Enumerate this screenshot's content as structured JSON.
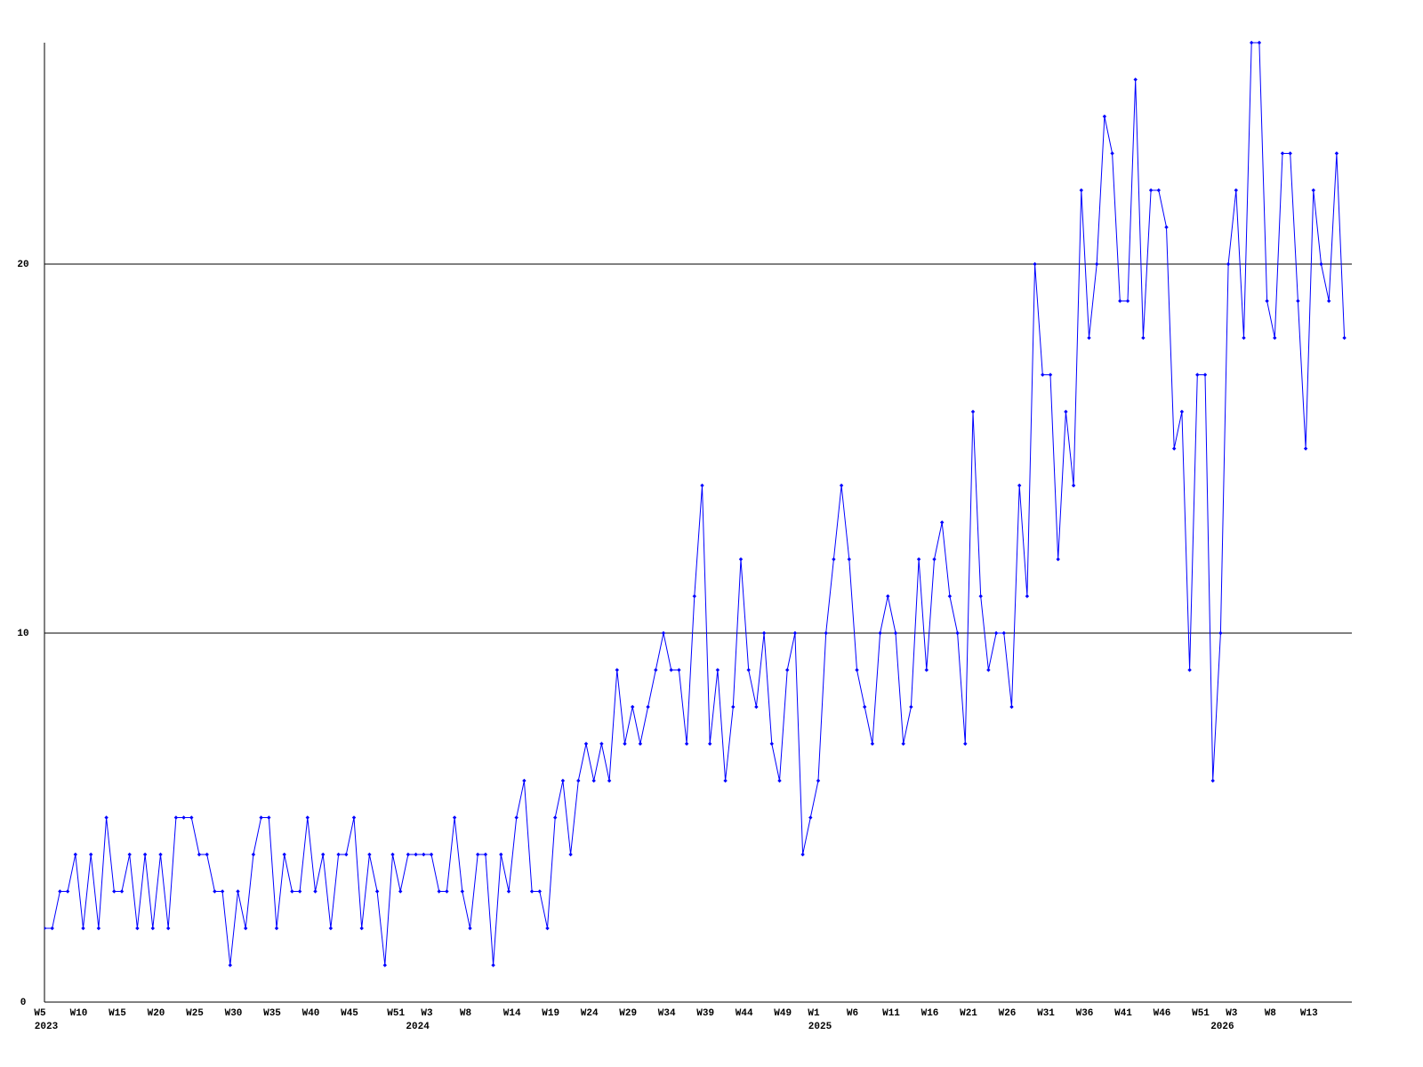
{
  "chart_data": {
    "type": "line",
    "categories": [
      "W5",
      null,
      null,
      null,
      null,
      "W10",
      null,
      null,
      null,
      null,
      "W15",
      null,
      null,
      null,
      null,
      "W20",
      null,
      null,
      null,
      null,
      "W25",
      null,
      null,
      null,
      null,
      "W30",
      null,
      null,
      null,
      null,
      "W35",
      null,
      null,
      null,
      null,
      "W40",
      null,
      null,
      null,
      null,
      "W45",
      null,
      null,
      null,
      null,
      null,
      "W51",
      null,
      null,
      null,
      "W3",
      null,
      null,
      null,
      null,
      "W8",
      null,
      null,
      null,
      null,
      null,
      "W14",
      null,
      null,
      null,
      null,
      "W19",
      null,
      null,
      null,
      null,
      "W24",
      null,
      null,
      null,
      null,
      "W29",
      null,
      null,
      null,
      null,
      "W34",
      null,
      null,
      null,
      null,
      "W39",
      null,
      null,
      null,
      null,
      "W44",
      null,
      null,
      null,
      null,
      "W49",
      null,
      null,
      null,
      "W1",
      null,
      null,
      null,
      null,
      "W6",
      null,
      null,
      null,
      null,
      "W11",
      null,
      null,
      null,
      null,
      "W16",
      null,
      null,
      null,
      null,
      "W21",
      null,
      null,
      null,
      null,
      "W26",
      null,
      null,
      null,
      null,
      "W31",
      null,
      null,
      null,
      null,
      "W36",
      null,
      null,
      null,
      null,
      "W41",
      null,
      null,
      null,
      null,
      "W46",
      null,
      null,
      null,
      null,
      "W51",
      null,
      null,
      null,
      "W3",
      null,
      null,
      null,
      null,
      "W8",
      null,
      null,
      null,
      null,
      "W13",
      null,
      null,
      null,
      null
    ],
    "category_years": [
      "2023",
      null,
      null,
      null,
      null,
      null,
      null,
      null,
      null,
      null,
      null,
      null,
      null,
      null,
      null,
      null,
      null,
      null,
      null,
      null,
      null,
      null,
      null,
      null,
      null,
      null,
      null,
      null,
      null,
      null,
      null,
      null,
      null,
      null,
      null,
      null,
      null,
      null,
      null,
      null,
      null,
      null,
      null,
      null,
      null,
      null,
      null,
      null,
      "2024",
      null,
      null,
      null,
      null,
      null,
      null,
      null,
      null,
      null,
      null,
      null,
      null,
      null,
      null,
      null,
      null,
      null,
      null,
      null,
      null,
      null,
      null,
      null,
      null,
      null,
      null,
      null,
      null,
      null,
      null,
      null,
      null,
      null,
      null,
      null,
      null,
      null,
      null,
      null,
      null,
      null,
      null,
      null,
      null,
      null,
      null,
      null,
      null,
      null,
      null,
      null,
      "2025",
      null,
      null,
      null,
      null,
      null,
      null,
      null,
      null,
      null,
      null,
      null,
      null,
      null,
      null,
      null,
      null,
      null,
      null,
      null,
      null,
      null,
      null,
      null,
      null,
      null,
      null,
      null,
      null,
      null,
      null,
      null,
      null,
      null,
      null,
      null,
      null,
      null,
      null,
      null,
      null,
      null,
      null,
      null,
      null,
      null,
      null,
      null,
      null,
      null,
      null,
      null,
      "2026",
      null,
      null,
      null,
      null,
      null,
      null,
      null,
      null,
      null,
      null,
      null,
      null,
      null,
      null,
      null,
      null
    ],
    "values": [
      2,
      2,
      3,
      3,
      4,
      2,
      4,
      2,
      5,
      3,
      3,
      4,
      2,
      4,
      2,
      4,
      2,
      5,
      5,
      5,
      4,
      4,
      3,
      3,
      1,
      3,
      2,
      4,
      5,
      5,
      2,
      4,
      3,
      3,
      5,
      3,
      4,
      2,
      4,
      4,
      5,
      2,
      4,
      3,
      1,
      4,
      3,
      4,
      4,
      4,
      4,
      3,
      3,
      5,
      3,
      2,
      4,
      4,
      1,
      4,
      3,
      5,
      6,
      3,
      3,
      2,
      5,
      6,
      4,
      6,
      7,
      6,
      7,
      6,
      9,
      7,
      8,
      7,
      8,
      9,
      10,
      9,
      9,
      7,
      11,
      14,
      7,
      9,
      6,
      8,
      12,
      9,
      8,
      10,
      7,
      6,
      9,
      10,
      4,
      5,
      6,
      10,
      12,
      14,
      12,
      9,
      8,
      7,
      10,
      11,
      10,
      7,
      8,
      12,
      9,
      12,
      13,
      11,
      10,
      7,
      16,
      11,
      9,
      10,
      10,
      8,
      14,
      11,
      20,
      17,
      17,
      12,
      16,
      14,
      22,
      18,
      20,
      24,
      23,
      19,
      19,
      25,
      18,
      22,
      22,
      21,
      15,
      16,
      9,
      17,
      17,
      6,
      10,
      20,
      22,
      18,
      26,
      26,
      19,
      18,
      23,
      23,
      19,
      15,
      22,
      20,
      19,
      23,
      18
    ],
    "color": "#0000ff",
    "ylim": [
      0,
      26
    ],
    "yticks": [
      0,
      10,
      20
    ],
    "grid": true
  }
}
